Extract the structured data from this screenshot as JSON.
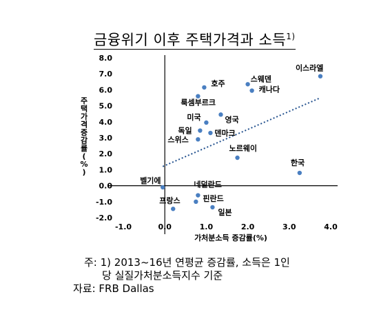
{
  "title": "금융위기 이후 주택가격과 소득",
  "title_sup": "1)",
  "notes": {
    "line1": "주: 1) 2013~16년 연평균 증감률, 소득은 1인",
    "line2": "당 실질가처분소득지수 기준",
    "source": "자료: FRB Dallas"
  },
  "chart_data": {
    "type": "scatter",
    "xlabel": "가처분소득 증감률(%)",
    "ylabel": "주택가격증감률(%)",
    "xlim": [
      -1.0,
      4.0
    ],
    "ylim": [
      -2.0,
      8.0
    ],
    "x_ticks": [
      "-1.0",
      "0.0",
      "1.0",
      "2.0",
      "3.0",
      "4.0"
    ],
    "y_ticks": [
      "8.0",
      "7.0",
      "6.0",
      "5.0",
      "4.0",
      "3.0",
      "2.0",
      "1.0",
      "0.0",
      "-1.0",
      "-2.0"
    ],
    "grid": false,
    "point_color": "#4a7fc1",
    "trendline": {
      "style": "dotted",
      "color": "#1f4e8c",
      "x": [
        -0.05,
        3.75
      ],
      "y": [
        1.2,
        5.5
      ]
    },
    "points": [
      {
        "label": "이스라엘",
        "x": 3.75,
        "y": 6.85
      },
      {
        "label": "스웨덴",
        "x": 2.0,
        "y": 6.35
      },
      {
        "label": "캐나다",
        "x": 2.1,
        "y": 5.95
      },
      {
        "label": "호주",
        "x": 0.95,
        "y": 6.15
      },
      {
        "label": "룩셈부르크",
        "x": 0.8,
        "y": 5.6
      },
      {
        "label": "영국",
        "x": 1.35,
        "y": 4.45
      },
      {
        "label": "미국",
        "x": 1.0,
        "y": 3.95
      },
      {
        "label": "독일",
        "x": 0.85,
        "y": 3.45
      },
      {
        "label": "덴마크",
        "x": 1.1,
        "y": 3.3
      },
      {
        "label": "스위스",
        "x": 0.8,
        "y": 2.9
      },
      {
        "label": "노르웨이",
        "x": 1.75,
        "y": 1.75
      },
      {
        "label": "한국",
        "x": 3.25,
        "y": 0.8
      },
      {
        "label": "벨기에",
        "x": -0.05,
        "y": -0.1
      },
      {
        "label": "네덜란드",
        "x": 0.8,
        "y": -0.6
      },
      {
        "label": "핀란드",
        "x": 0.75,
        "y": -1.0
      },
      {
        "label": "프랑스",
        "x": 0.2,
        "y": -1.45
      },
      {
        "label": "일본",
        "x": 1.15,
        "y": -1.35
      }
    ]
  }
}
